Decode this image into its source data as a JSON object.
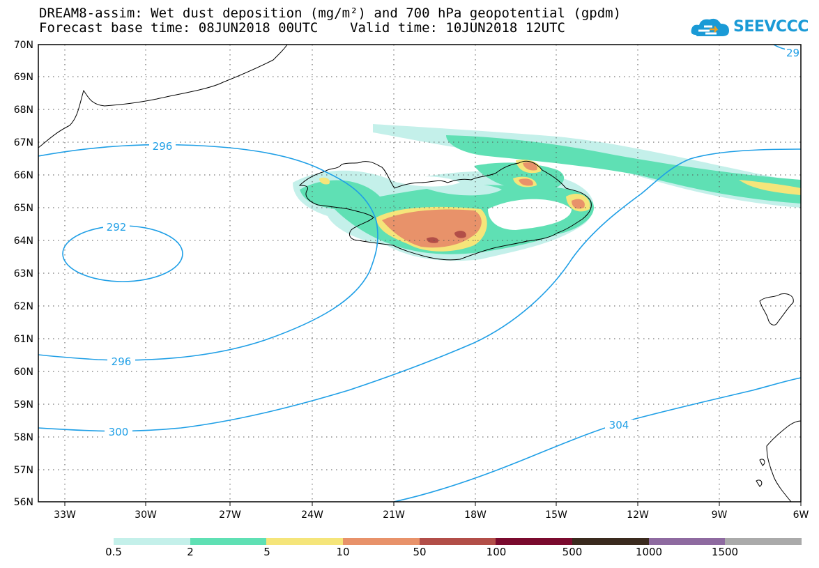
{
  "title": {
    "line1": "DREAM8-assim: Wet dust deposition (mg/m²) and 700 hPa geopotential (gpdm)",
    "line2": "Forecast base time: 08JUN2018 00UTC    Valid time: 10JUN2018 12UTC"
  },
  "logo": {
    "text": "SEEVCCC",
    "icon": "cloud-icon",
    "color": "#1a9ad6"
  },
  "map": {
    "lon_labels": [
      "33W",
      "30W",
      "27W",
      "24W",
      "21W",
      "18W",
      "15W",
      "12W",
      "9W",
      "6W"
    ],
    "lat_labels": [
      "70N",
      "69N",
      "68N",
      "67N",
      "66N",
      "65N",
      "64N",
      "63N",
      "62N",
      "61N",
      "60N",
      "59N",
      "58N",
      "57N",
      "56N"
    ],
    "contour_labels": [
      "296",
      "292",
      "296",
      "300",
      "304",
      "29"
    ],
    "contour_color": "#1f9fe6"
  },
  "legend": {
    "labels": [
      "0.5",
      "2",
      "5",
      "10",
      "50",
      "100",
      "500",
      "1000",
      "1500"
    ],
    "colors": [
      "#c4f0ea",
      "#5fe0b4",
      "#f5e57a",
      "#e8926a",
      "#b24e48",
      "#7a0a2e",
      "#3a2a1e",
      "#8e6aa0",
      "#aaaaaa"
    ]
  }
}
